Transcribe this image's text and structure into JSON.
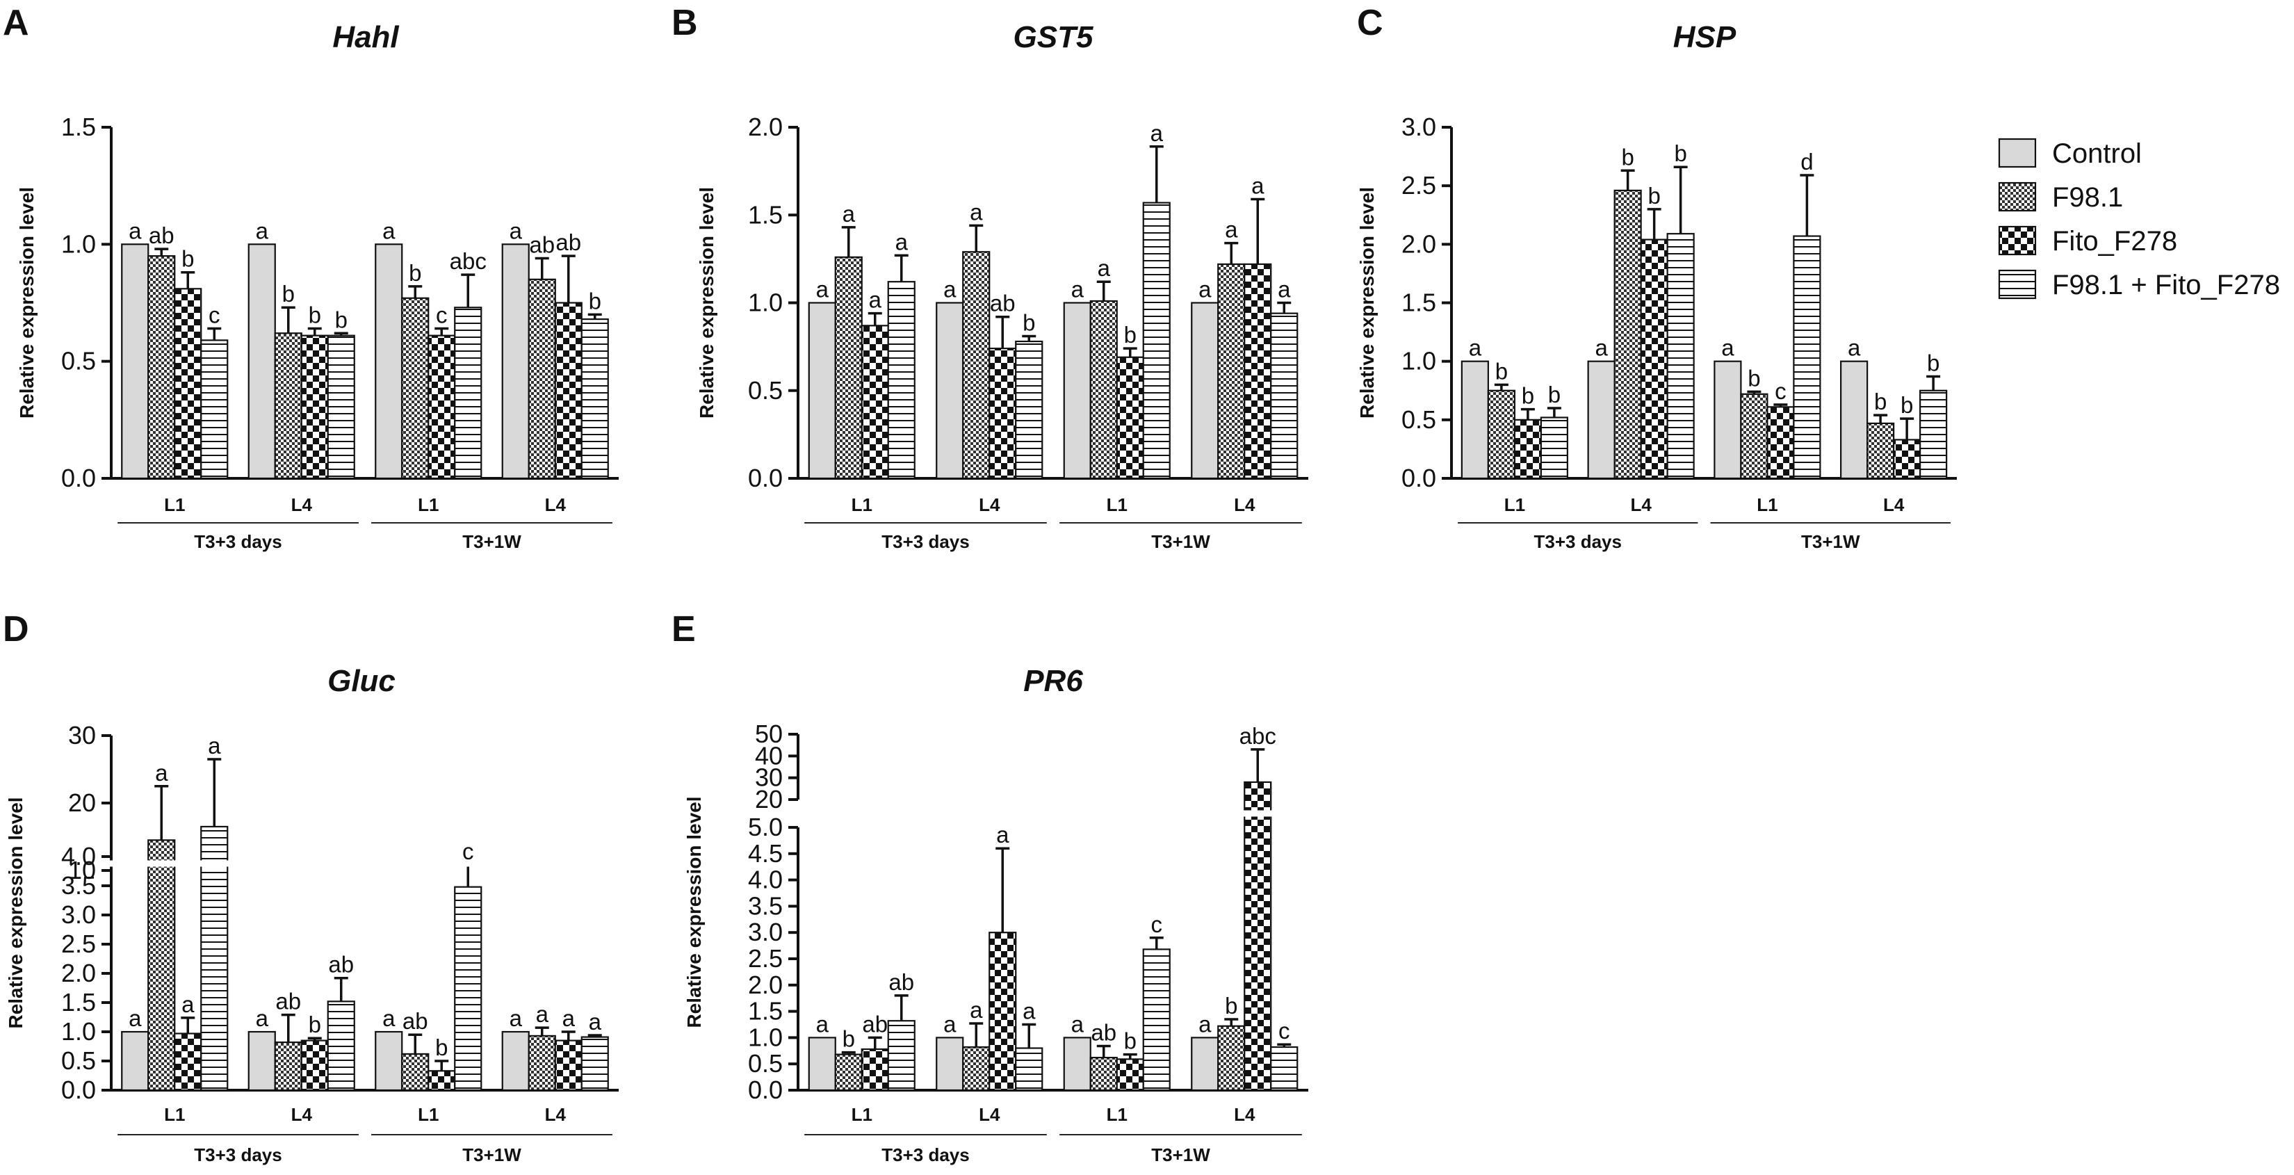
{
  "legend": [
    {
      "key": "control",
      "label": "Control"
    },
    {
      "key": "f981",
      "label": "F98.1"
    },
    {
      "key": "fito",
      "label": "Fito_F278"
    },
    {
      "key": "combo",
      "label": "F98.1 + Fito_F278"
    }
  ],
  "fill_colors": {
    "control": "#d9d9d9",
    "background": "#ffffff",
    "ink": "#111111"
  },
  "chart_data": [
    {
      "id": "A",
      "panel": "A",
      "title": "Hahl",
      "type": "bar",
      "ylabel": "Relative expression level",
      "ylim": [
        0,
        1.5
      ],
      "yticks": [
        "0.0",
        "0.5",
        "1.0",
        "1.5"
      ],
      "ytick_values": [
        0,
        0.5,
        1.0,
        1.5
      ],
      "categories": [
        "L1",
        "L4",
        "L1",
        "L4"
      ],
      "groups": [
        {
          "label": "T3+3 days",
          "span": [
            0,
            1
          ]
        },
        {
          "label": "T3+1W",
          "span": [
            2,
            3
          ]
        }
      ],
      "series": [
        {
          "name": "Control",
          "values": [
            1.0,
            1.0,
            1.0,
            1.0
          ],
          "errors": [
            0,
            0,
            0,
            0
          ],
          "letters": [
            "a",
            "a",
            "a",
            "a"
          ]
        },
        {
          "name": "F98.1",
          "values": [
            0.95,
            0.62,
            0.77,
            0.85
          ],
          "errors": [
            0.03,
            0.11,
            0.05,
            0.09
          ],
          "letters": [
            "ab",
            "b",
            "b",
            "ab"
          ]
        },
        {
          "name": "Fito_F278",
          "values": [
            0.81,
            0.61,
            0.61,
            0.75
          ],
          "errors": [
            0.07,
            0.03,
            0.03,
            0.2
          ],
          "letters": [
            "b",
            "b",
            "c",
            "ab"
          ]
        },
        {
          "name": "F98.1 + Fito_F278",
          "values": [
            0.59,
            0.61,
            0.73,
            0.68
          ],
          "errors": [
            0.05,
            0.01,
            0.14,
            0.02
          ],
          "letters": [
            "c",
            "b",
            "abc",
            "b"
          ]
        }
      ]
    },
    {
      "id": "B",
      "panel": "B",
      "title": "GST5",
      "type": "bar",
      "ylabel": "Relative expression level",
      "ylim": [
        0,
        2.0
      ],
      "yticks": [
        "0.0",
        "0.5",
        "1.0",
        "1.5",
        "2.0"
      ],
      "ytick_values": [
        0,
        0.5,
        1.0,
        1.5,
        2.0
      ],
      "categories": [
        "L1",
        "L4",
        "L1",
        "L4"
      ],
      "groups": [
        {
          "label": "T3+3 days",
          "span": [
            0,
            1
          ]
        },
        {
          "label": "T3+1W",
          "span": [
            2,
            3
          ]
        }
      ],
      "series": [
        {
          "name": "Control",
          "values": [
            1.0,
            1.0,
            1.0,
            1.0
          ],
          "errors": [
            0,
            0,
            0,
            0
          ],
          "letters": [
            "a",
            "a",
            "a",
            "a"
          ]
        },
        {
          "name": "F98.1",
          "values": [
            1.26,
            1.29,
            1.01,
            1.22
          ],
          "errors": [
            0.17,
            0.15,
            0.11,
            0.12
          ],
          "letters": [
            "a",
            "a",
            "a",
            "a"
          ]
        },
        {
          "name": "Fito_F278",
          "values": [
            0.87,
            0.74,
            0.69,
            1.22
          ],
          "errors": [
            0.07,
            0.18,
            0.05,
            0.37
          ],
          "letters": [
            "a",
            "ab",
            "b",
            "a"
          ]
        },
        {
          "name": "F98.1 + Fito_F278",
          "values": [
            1.12,
            0.78,
            1.57,
            0.94
          ],
          "errors": [
            0.15,
            0.03,
            0.32,
            0.06
          ],
          "letters": [
            "a",
            "b",
            "a",
            "a"
          ]
        }
      ]
    },
    {
      "id": "C",
      "panel": "C",
      "title": "HSP",
      "type": "bar",
      "ylabel": "Relative expression level",
      "ylim": [
        0,
        3.0
      ],
      "yticks": [
        "0.0",
        "0.5",
        "1.0",
        "1.5",
        "2.0",
        "2.5",
        "3.0"
      ],
      "ytick_values": [
        0,
        0.5,
        1.0,
        1.5,
        2.0,
        2.5,
        3.0
      ],
      "categories": [
        "L1",
        "L4",
        "L1",
        "L4"
      ],
      "groups": [
        {
          "label": "T3+3 days",
          "span": [
            0,
            1
          ]
        },
        {
          "label": "T3+1W",
          "span": [
            2,
            3
          ]
        }
      ],
      "series": [
        {
          "name": "Control",
          "values": [
            1.0,
            1.0,
            1.0,
            1.0
          ],
          "errors": [
            0,
            0,
            0,
            0
          ],
          "letters": [
            "a",
            "a",
            "a",
            "a"
          ]
        },
        {
          "name": "F98.1",
          "values": [
            0.75,
            2.46,
            0.72,
            0.47
          ],
          "errors": [
            0.05,
            0.17,
            0.02,
            0.07
          ],
          "letters": [
            "b",
            "b",
            "b",
            "b"
          ]
        },
        {
          "name": "Fito_F278",
          "values": [
            0.5,
            2.04,
            0.61,
            0.33
          ],
          "errors": [
            0.09,
            0.26,
            0.02,
            0.18
          ],
          "letters": [
            "b",
            "b",
            "c",
            "b"
          ]
        },
        {
          "name": "F98.1 + Fito_F278",
          "values": [
            0.52,
            2.09,
            2.07,
            0.75
          ],
          "errors": [
            0.08,
            0.57,
            0.52,
            0.12
          ],
          "letters": [
            "b",
            "b",
            "d",
            "b"
          ]
        }
      ]
    },
    {
      "id": "D",
      "panel": "D",
      "title": "Gluc",
      "type": "bar",
      "ylabel": "Relative expression level",
      "ylim_lower": [
        0,
        4.0
      ],
      "ylim_upper": [
        10,
        30
      ],
      "yticks_lower": [
        "0.0",
        "0.5",
        "1.0",
        "1.5",
        "2.0",
        "2.5",
        "3.0",
        "3.5",
        "4.0"
      ],
      "ytick_values_lower": [
        0,
        0.5,
        1.0,
        1.5,
        2.0,
        2.5,
        3.0,
        3.5,
        4.0
      ],
      "yticks_upper": [
        "10",
        "20",
        "30"
      ],
      "ytick_values_upper": [
        10,
        20,
        30
      ],
      "categories": [
        "L1",
        "L4",
        "L1",
        "L4"
      ],
      "groups": [
        {
          "label": "T3+3 days",
          "span": [
            0,
            1
          ]
        },
        {
          "label": "T3+1W",
          "span": [
            2,
            3
          ]
        }
      ],
      "series": [
        {
          "name": "Control",
          "values": [
            1.0,
            1.0,
            1.0,
            1.0
          ],
          "errors": [
            0,
            0,
            0,
            0
          ],
          "letters": [
            "a",
            "a",
            "a",
            "a"
          ]
        },
        {
          "name": "F98.1",
          "values": [
            14.5,
            0.82,
            0.62,
            0.93
          ],
          "errors": [
            8.0,
            0.47,
            0.33,
            0.14
          ],
          "letters": [
            "a",
            "ab",
            "ab",
            "a"
          ]
        },
        {
          "name": "Fito_F278",
          "values": [
            0.97,
            0.85,
            0.33,
            0.85
          ],
          "errors": [
            0.27,
            0.04,
            0.17,
            0.15
          ],
          "letters": [
            "a",
            "b",
            "b",
            "a"
          ]
        },
        {
          "name": "F98.1 + Fito_F278",
          "values": [
            16.5,
            1.52,
            3.48,
            0.91
          ],
          "errors": [
            10.0,
            0.4,
            0.38,
            0.03
          ],
          "letters": [
            "a",
            "ab",
            "c",
            "a"
          ]
        }
      ]
    },
    {
      "id": "E",
      "panel": "E",
      "title": "PR6",
      "type": "bar",
      "ylabel": "Relative expression level",
      "ylim_lower": [
        0,
        5.0
      ],
      "ylim_upper": [
        20,
        50
      ],
      "yticks_lower": [
        "0.0",
        "0.5",
        "1.0",
        "1.5",
        "2.0",
        "2.5",
        "3.0",
        "3.5",
        "4.0",
        "4.5",
        "5.0"
      ],
      "ytick_values_lower": [
        0,
        0.5,
        1.0,
        1.5,
        2.0,
        2.5,
        3.0,
        3.5,
        4.0,
        4.5,
        5.0
      ],
      "yticks_upper": [
        "20",
        "30",
        "40",
        "50"
      ],
      "ytick_values_upper": [
        20,
        30,
        40,
        50
      ],
      "categories": [
        "L1",
        "L4",
        "L1",
        "L4"
      ],
      "groups": [
        {
          "label": "T3+3 days",
          "span": [
            0,
            1
          ]
        },
        {
          "label": "T3+1W",
          "span": [
            2,
            3
          ]
        }
      ],
      "series": [
        {
          "name": "Control",
          "values": [
            1.0,
            1.0,
            1.0,
            1.0
          ],
          "errors": [
            0,
            0,
            0,
            0
          ],
          "letters": [
            "a",
            "a",
            "a",
            "a"
          ]
        },
        {
          "name": "F98.1",
          "values": [
            0.68,
            0.82,
            0.62,
            1.22
          ],
          "errors": [
            0.04,
            0.45,
            0.22,
            0.13
          ],
          "letters": [
            "b",
            "a",
            "ab",
            "b"
          ]
        },
        {
          "name": "Fito_F278",
          "values": [
            0.78,
            3.0,
            0.59,
            28.0
          ],
          "errors": [
            0.22,
            1.6,
            0.09,
            15.0
          ],
          "letters": [
            "ab",
            "a",
            "b",
            "abc"
          ]
        },
        {
          "name": "F98.1 + Fito_F278",
          "values": [
            1.32,
            0.8,
            2.68,
            0.82
          ],
          "errors": [
            0.48,
            0.45,
            0.22,
            0.05
          ],
          "letters": [
            "ab",
            "a",
            "c",
            "c"
          ]
        }
      ]
    }
  ]
}
